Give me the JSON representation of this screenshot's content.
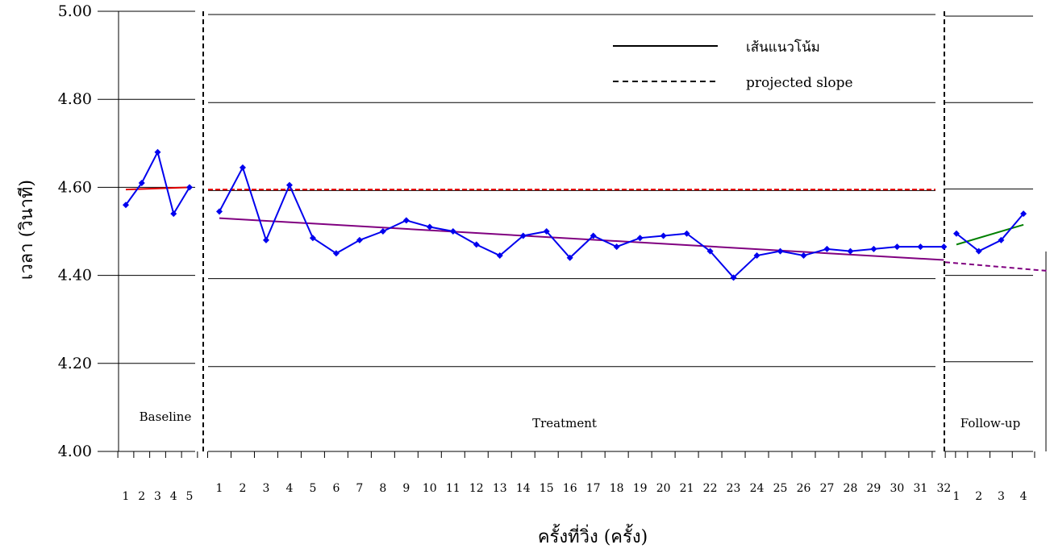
{
  "chart_data": {
    "type": "line",
    "title": "",
    "xlabel": "ครั้งที่วิ่ง (ครั้ง)",
    "ylabel": "เวลา (วินาที)",
    "ylim": [
      4.0,
      5.0
    ],
    "y_ticks": [
      "4.00",
      "4.20",
      "4.40",
      "4.60",
      "4.80",
      "5.00"
    ],
    "grid": true,
    "legend_position": "top-right",
    "legend": [
      {
        "label": "เส้นแนวโน้ม",
        "style": "solid"
      },
      {
        "label": "projected slope",
        "style": "dashed"
      }
    ],
    "colors": {
      "data": "#0000ee",
      "baseline_trend": "#e00000",
      "treatment_trend": "#800080",
      "followup_trend": "#008000",
      "projected": "#800080"
    },
    "phases": [
      {
        "name": "Baseline",
        "x": [
          "1",
          "2",
          "3",
          "4",
          "5"
        ],
        "values": [
          4.56,
          4.61,
          4.68,
          4.54,
          4.6
        ],
        "trend": {
          "start": 4.595,
          "end": 4.6
        }
      },
      {
        "name": "Treatment",
        "x": [
          "1",
          "2",
          "3",
          "4",
          "5",
          "6",
          "7",
          "8",
          "9",
          "10",
          "11",
          "12",
          "13",
          "14",
          "15",
          "16",
          "17",
          "18",
          "19",
          "20",
          "21",
          "22",
          "23",
          "24",
          "25",
          "26",
          "27",
          "28",
          "29",
          "30",
          "31",
          "32"
        ],
        "values": [
          4.545,
          4.645,
          4.48,
          4.605,
          4.485,
          4.45,
          4.48,
          4.5,
          4.525,
          4.51,
          4.5,
          4.47,
          4.445,
          4.49,
          4.5,
          4.44,
          4.49,
          4.465,
          4.485,
          4.49,
          4.495,
          4.455,
          4.395,
          4.445,
          4.455,
          4.445,
          4.46,
          4.455,
          4.46,
          4.465,
          4.465,
          4.465
        ],
        "trend": {
          "start": 4.53,
          "end": 4.435
        },
        "projected_level": 4.595
      },
      {
        "name": "Follow-up",
        "x": [
          "1",
          "2",
          "3",
          "4"
        ],
        "values": [
          4.495,
          4.455,
          4.48,
          4.54
        ],
        "trend": {
          "start": 4.47,
          "end": 4.515
        },
        "projected_slope": {
          "start": 4.43,
          "end": 4.41
        }
      }
    ]
  }
}
